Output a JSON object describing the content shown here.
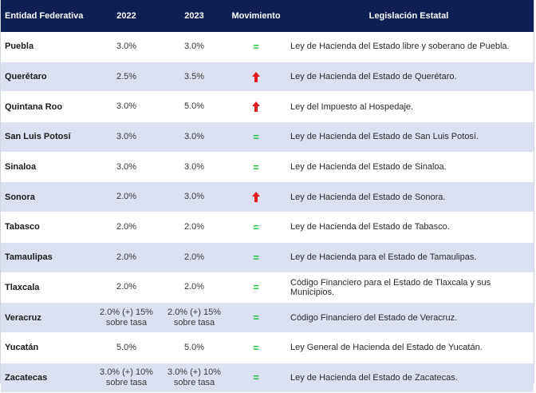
{
  "header": {
    "col_entity": "Entidad Federativa",
    "col_2022": "2022",
    "col_2023": "2023",
    "col_movement": "Movimiento",
    "col_law": "Legislación Estatal"
  },
  "colors": {
    "header_bg": "#0e1f56",
    "stripe": "#dbe1f1",
    "equal": "#1fbf3a",
    "up": "#e31b1b"
  },
  "rows": [
    {
      "entity": "Puebla",
      "y2022": "3.0%",
      "y2023": "3.0%",
      "movement": "equal",
      "movement_symbol": "=",
      "law": "Ley de Hacienda del Estado libre y soberano de Puebla."
    },
    {
      "entity": "Querétaro",
      "y2022": "2.5%",
      "y2023": "3.5%",
      "movement": "up",
      "movement_symbol": "",
      "law": "Ley de Hacienda del Estado de Querétaro."
    },
    {
      "entity": "Quintana Roo",
      "y2022": "3.0%",
      "y2023": "5.0%",
      "movement": "up",
      "movement_symbol": "",
      "law": "Ley del Impuesto al Hospedaje."
    },
    {
      "entity": "San Luis Potosí",
      "y2022": "3.0%",
      "y2023": "3.0%",
      "movement": "equal",
      "movement_symbol": "=",
      "law": "Ley de Hacienda del Estado de San Luis Potosí."
    },
    {
      "entity": "Sinaloa",
      "y2022": "3.0%",
      "y2023": "3.0%",
      "movement": "equal",
      "movement_symbol": "=",
      "law": "Ley de Hacienda del Estado de Sinaloa."
    },
    {
      "entity": "Sonora",
      "y2022": "2.0%",
      "y2023": "3.0%",
      "movement": "up",
      "movement_symbol": "",
      "law": "Ley de Hacienda del Estado de Sonora."
    },
    {
      "entity": "Tabasco",
      "y2022": "2.0%",
      "y2023": "2.0%",
      "movement": "equal",
      "movement_symbol": "=",
      "law": "Ley de Hacienda del Estado de Tabasco."
    },
    {
      "entity": "Tamaulipas",
      "y2022": "2.0%",
      "y2023": "2.0%",
      "movement": "equal",
      "movement_symbol": "=",
      "law": "Ley de Hacienda para el Estado de Tamaulipas."
    },
    {
      "entity": "Tlaxcala",
      "y2022": "2.0%",
      "y2023": "2.0%",
      "movement": "equal",
      "movement_symbol": "=",
      "law": "Código Financiero para el Estado de Tlaxcala y sus Municipios."
    },
    {
      "entity": "Veracruz",
      "y2022_line1": "2.0% (+) 15%",
      "y2022_line2": "sobre tasa",
      "y2023_line1": "2.0% (+) 15%",
      "y2023_line2": "sobre tasa",
      "movement": "equal",
      "movement_symbol": "=",
      "law": "Código Financiero del Estado de Veracruz."
    },
    {
      "entity": "Yucatán",
      "y2022": "5.0%",
      "y2023": "5.0%",
      "movement": "equal",
      "movement_symbol": "=",
      "law": "Ley General de Hacienda del Estado de Yucatán."
    },
    {
      "entity": "Zacatecas",
      "y2022_line1": "3.0% (+) 10%",
      "y2022_line2": "sobre tasa",
      "y2023_line1": "3.0% (+) 10%",
      "y2023_line2": "sobre tasa",
      "movement": "equal",
      "movement_symbol": "=",
      "law": "Ley de Hacienda del Estado de Zacatecas."
    }
  ]
}
